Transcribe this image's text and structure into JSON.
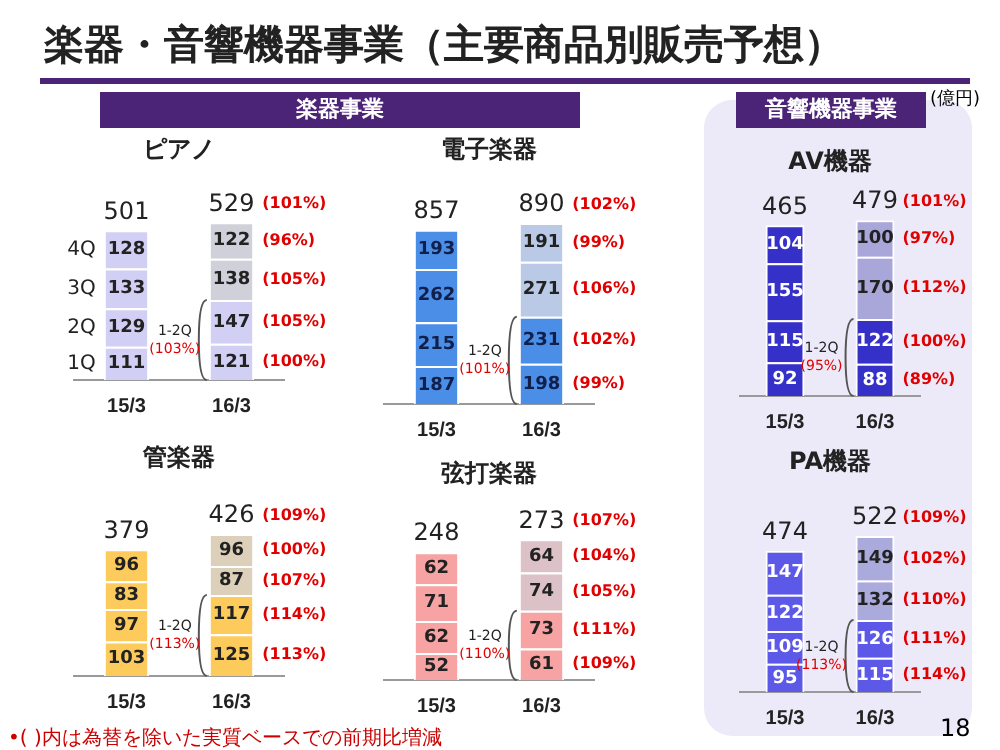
{
  "chart_data": [
    {
      "type": "other",
      "title": "楽器・音響機器事業（主要商品別販売予想）",
      "annotations": [
        "楽器事業",
        "音響機器事業",
        "(億円)",
        "•( )内は為替を除いた実質ベースでの前期比増減",
        "18"
      ]
    },
    {
      "type": "bar",
      "title": "ピアノ",
      "categories": [
        "15/3",
        "16/3"
      ],
      "stacked": true,
      "data_labels": true,
      "tick_labels": "x",
      "totals": [
        "501",
        "529"
      ],
      "series": [
        {
          "name": "1Q",
          "colors": [
            "#d2cff5",
            "#d2cff5"
          ],
          "values": [
            111,
            121
          ]
        },
        {
          "name": "2Q",
          "colors": [
            "#d2cff5",
            "#d2cff5"
          ],
          "values": [
            129,
            147
          ]
        },
        {
          "name": "3Q",
          "colors": [
            "#d2cff5",
            "#d0d0da"
          ],
          "values": [
            133,
            138
          ]
        },
        {
          "name": "4Q",
          "colors": [
            "#d2cff5",
            "#d0d0da"
          ],
          "values": [
            128,
            122
          ]
        }
      ],
      "annotations": [
        "1-2Q (103%)",
        "(100%)",
        "(105%)",
        "(105%)",
        "(96%)",
        "(101%)"
      ]
    },
    {
      "type": "bar",
      "title": "電子楽器",
      "categories": [
        "15/3",
        "16/3"
      ],
      "stacked": true,
      "data_labels": true,
      "tick_labels": "x",
      "totals": [
        "857",
        "890"
      ],
      "series": [
        {
          "colors": [
            "#4b8ee8",
            "#4b8ee8"
          ],
          "values": [
            187,
            198
          ]
        },
        {
          "colors": [
            "#4b8ee8",
            "#4b8ee8"
          ],
          "values": [
            215,
            231
          ]
        },
        {
          "colors": [
            "#4b8ee8",
            "#b9c9e6"
          ],
          "values": [
            262,
            271
          ]
        },
        {
          "colors": [
            "#4b8ee8",
            "#b9c9e6"
          ],
          "values": [
            193,
            191
          ]
        }
      ],
      "annotations": [
        "1-2Q (101%)",
        "(99%)",
        "(102%)",
        "(106%)",
        "(99%)",
        "(102%)"
      ]
    },
    {
      "type": "bar",
      "title": "管楽器",
      "categories": [
        "15/3",
        "16/3"
      ],
      "stacked": true,
      "data_labels": true,
      "tick_labels": "x",
      "totals": [
        "379",
        "426"
      ],
      "series": [
        {
          "colors": [
            "#fccb5c",
            "#fccb5c"
          ],
          "values": [
            103,
            125
          ]
        },
        {
          "colors": [
            "#fccb5c",
            "#fccb5c"
          ],
          "values": [
            97,
            117
          ]
        },
        {
          "colors": [
            "#fccb5c",
            "#ddd0ba"
          ],
          "values": [
            83,
            87
          ]
        },
        {
          "colors": [
            "#fccb5c",
            "#ddd0ba"
          ],
          "values": [
            96,
            96
          ]
        }
      ],
      "annotations": [
        "1-2Q (113%)",
        "(113%)",
        "(114%)",
        "(107%)",
        "(100%)",
        "(109%)"
      ]
    },
    {
      "type": "bar",
      "title": "弦打楽器",
      "categories": [
        "15/3",
        "16/3"
      ],
      "stacked": true,
      "data_labels": true,
      "tick_labels": "x",
      "totals": [
        "248",
        "273"
      ],
      "series": [
        {
          "colors": [
            "#f7a3a3",
            "#f7a3a3"
          ],
          "values": [
            52,
            61
          ]
        },
        {
          "colors": [
            "#f7a3a3",
            "#f7a3a3"
          ],
          "values": [
            62,
            73
          ]
        },
        {
          "colors": [
            "#f7a3a3",
            "#dcc2c6"
          ],
          "values": [
            71,
            74
          ]
        },
        {
          "colors": [
            "#f7a3a3",
            "#dcc2c6"
          ],
          "values": [
            62,
            64
          ]
        }
      ],
      "annotations": [
        "1-2Q (110%)",
        "(109%)",
        "(111%)",
        "(105%)",
        "(104%)",
        "(107%)"
      ]
    },
    {
      "type": "bar",
      "title": "AV機器",
      "categories": [
        "15/3",
        "16/3"
      ],
      "stacked": true,
      "data_labels": true,
      "tick_labels": "x",
      "totals": [
        "465",
        "479"
      ],
      "series": [
        {
          "colors": [
            "#3531c8",
            "#3531c8"
          ],
          "values": [
            92,
            88
          ]
        },
        {
          "colors": [
            "#3531c8",
            "#3531c8"
          ],
          "values": [
            115,
            122
          ]
        },
        {
          "colors": [
            "#3531c8",
            "#a9a7d9"
          ],
          "values": [
            155,
            170
          ]
        },
        {
          "colors": [
            "#3531c8",
            "#a9a7d9"
          ],
          "values": [
            104,
            100
          ]
        }
      ],
      "annotations": [
        "1-2Q (95%)",
        "(89%)",
        "(100%)",
        "(112%)",
        "(97%)",
        "(101%)"
      ]
    },
    {
      "type": "bar",
      "title": "PA機器",
      "categories": [
        "15/3",
        "16/3"
      ],
      "stacked": true,
      "data_labels": true,
      "tick_labels": "x",
      "totals": [
        "474",
        "522"
      ],
      "series": [
        {
          "colors": [
            "#5d59e8",
            "#5d59e8"
          ],
          "values": [
            95,
            115
          ]
        },
        {
          "colors": [
            "#5d59e8",
            "#5d59e8"
          ],
          "values": [
            109,
            126
          ]
        },
        {
          "colors": [
            "#5d59e8",
            "#abaadd"
          ],
          "values": [
            122,
            132
          ]
        },
        {
          "colors": [
            "#5d59e8",
            "#abaadd"
          ],
          "values": [
            147,
            149
          ]
        }
      ],
      "annotations": [
        "1-2Q (113%)",
        "(114%)",
        "(111%)",
        "(110%)",
        "(102%)",
        "(109%)"
      ]
    }
  ]
}
